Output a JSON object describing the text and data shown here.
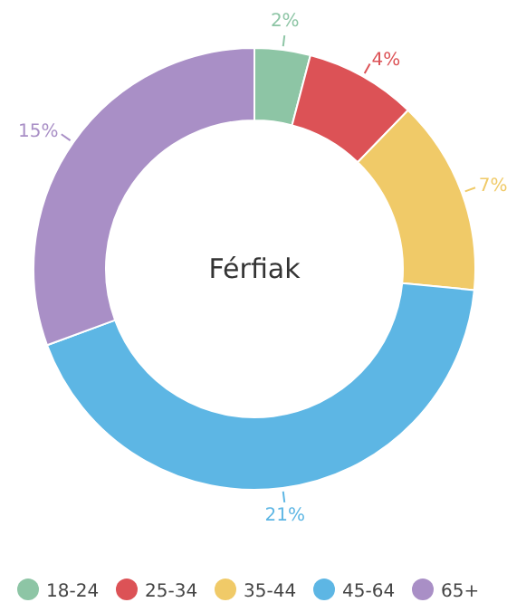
{
  "chart_data": {
    "type": "donut",
    "title": "Férfiak",
    "categories": [
      "18-24",
      "25-34",
      "35-44",
      "45-64",
      "65+"
    ],
    "values": [
      2,
      4,
      7,
      21,
      15
    ],
    "value_labels": [
      "2%",
      "4%",
      "7%",
      "21%",
      "15%"
    ],
    "colors": [
      "#8dc5a5",
      "#dc5256",
      "#f0ca68",
      "#5db6e4",
      "#a98fc6"
    ],
    "legend": "bottom"
  }
}
